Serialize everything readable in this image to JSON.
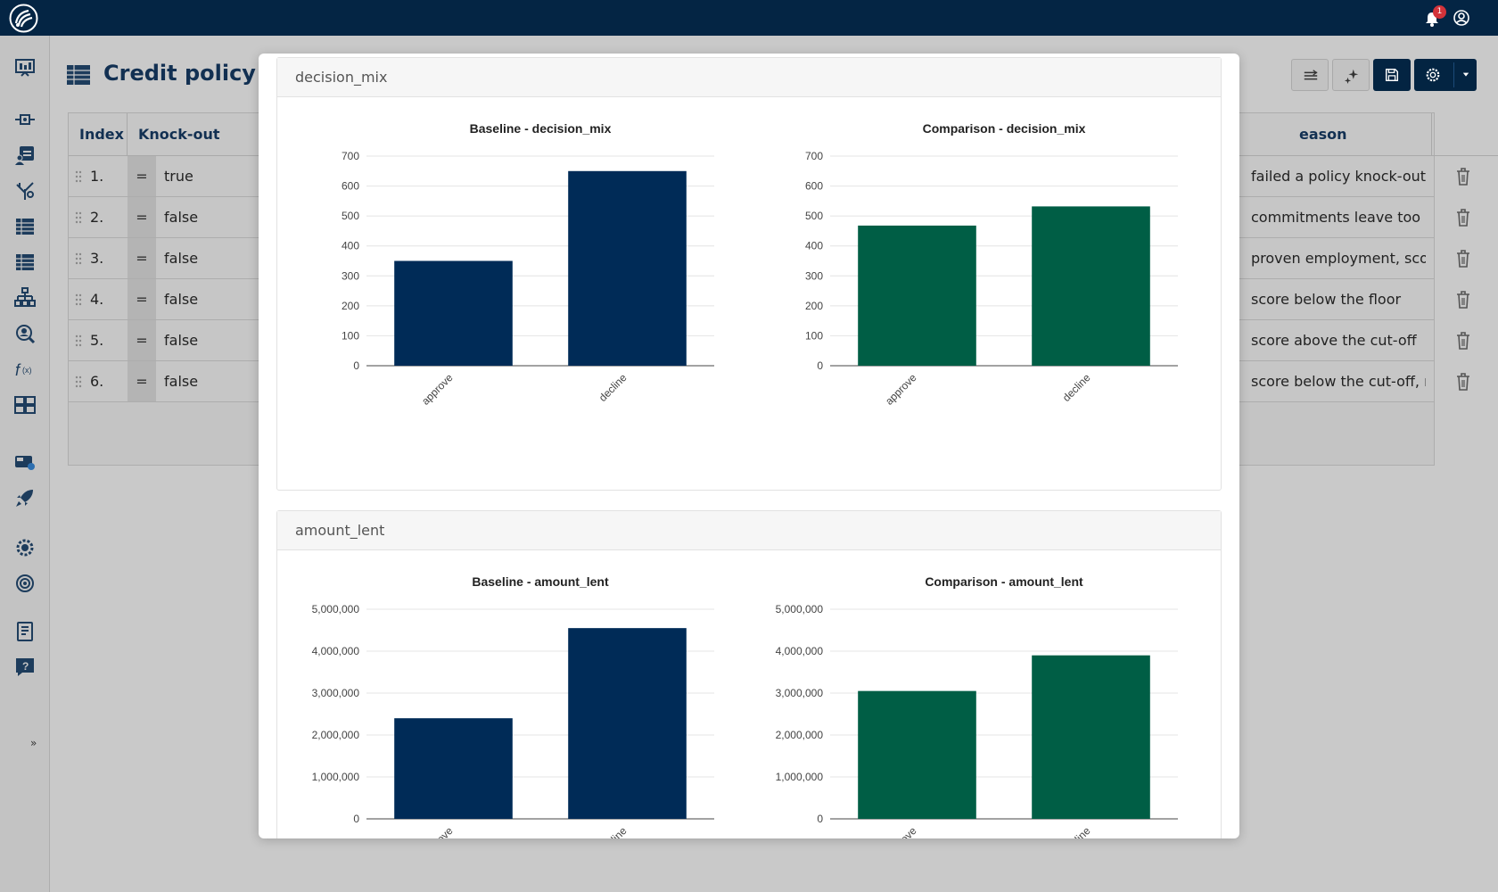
{
  "app": {
    "notification_count": "1"
  },
  "page": {
    "title": "Credit policy"
  },
  "table": {
    "headers": {
      "index": "Index",
      "knockout": "Knock-out",
      "reason": "eason"
    },
    "rows": [
      {
        "index": "1.",
        "op": "=",
        "knockout": "true",
        "reason": "failed a policy knock-out"
      },
      {
        "index": "2.",
        "op": "=",
        "knockout": "false",
        "reason": "commitments leave too litt"
      },
      {
        "index": "3.",
        "op": "=",
        "knockout": "false",
        "reason": "proven employment, score"
      },
      {
        "index": "4.",
        "op": "=",
        "knockout": "false",
        "reason": "score below the floor"
      },
      {
        "index": "5.",
        "op": "=",
        "knockout": "false",
        "reason": "score above the cut-off"
      },
      {
        "index": "6.",
        "op": "=",
        "knockout": "false",
        "reason": "score below the cut-off, no"
      }
    ]
  },
  "modal": {
    "title": "decision_mix",
    "minimize_label": "–",
    "close_label": "×"
  },
  "panels": [
    {
      "title": "decision_mix"
    },
    {
      "title": "amount_lent"
    }
  ],
  "sidebar": {
    "expand_label": "»"
  },
  "colors": {
    "baseline": "#002b57",
    "comparison": "#005e45",
    "topbar": "#042544"
  },
  "icons": [
    "logo-icon",
    "bell-icon",
    "user-icon",
    "dashboard-icon",
    "flow-icon",
    "profile-icon",
    "tree-icon",
    "table-icon",
    "table-alt-icon",
    "hierarchy-icon",
    "search-person-icon",
    "function-icon",
    "grid-icon",
    "bus-icon",
    "rocket-icon",
    "settings-gear-icon",
    "cog-icon",
    "document-icon",
    "help-icon",
    "filter-icon",
    "sparkle-icon",
    "save-icon",
    "gear-icon",
    "caret-down-icon",
    "trash-icon"
  ],
  "chart_data": [
    {
      "type": "bar",
      "title": "Baseline - decision_mix",
      "categories": [
        "approve",
        "decline"
      ],
      "values": [
        350,
        650
      ],
      "ylim": [
        0,
        700
      ],
      "yticks": [
        "0",
        "100",
        "200",
        "300",
        "400",
        "500",
        "600",
        "700"
      ],
      "grid": true
    },
    {
      "type": "bar",
      "title": "Comparison - decision_mix",
      "categories": [
        "approve",
        "decline"
      ],
      "values": [
        468,
        532
      ],
      "ylim": [
        0,
        700
      ],
      "yticks": [
        "0",
        "100",
        "200",
        "300",
        "400",
        "500",
        "600",
        "700"
      ],
      "grid": true
    },
    {
      "type": "bar",
      "title": "Baseline - amount_lent",
      "categories": [
        "approve",
        "decline"
      ],
      "values": [
        2400000,
        4550000
      ],
      "ylim": [
        0,
        5000000
      ],
      "yticks": [
        "0",
        "1,000,000",
        "2,000,000",
        "3,000,000",
        "4,000,000",
        "5,000,000"
      ],
      "grid": true
    },
    {
      "type": "bar",
      "title": "Comparison - amount_lent",
      "categories": [
        "approve",
        "decline"
      ],
      "values": [
        3050000,
        3900000
      ],
      "ylim": [
        0,
        5000000
      ],
      "yticks": [
        "0",
        "1,000,000",
        "2,000,000",
        "3,000,000",
        "4,000,000",
        "5,000,000"
      ],
      "grid": true
    }
  ]
}
